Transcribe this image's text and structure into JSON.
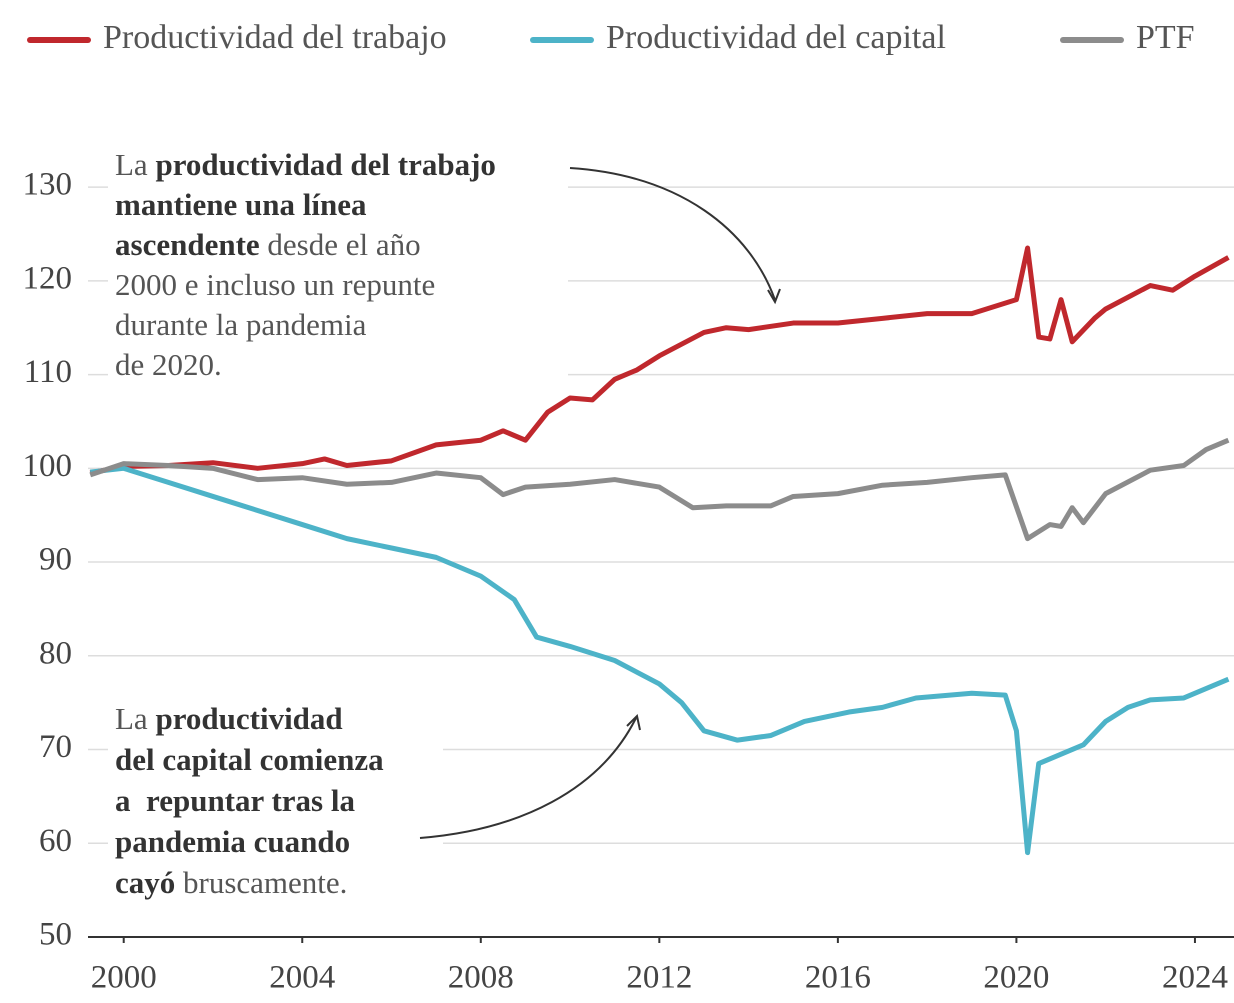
{
  "chart_data": {
    "type": "line",
    "legend": "top",
    "grid": true,
    "xlim": [
      1999.2,
      2024.83
    ],
    "xticks": [
      2000,
      2004,
      2008,
      2012,
      2016,
      2020,
      2024
    ],
    "ylim": [
      50,
      133
    ],
    "yticks": [
      50,
      60,
      70,
      80,
      90,
      100,
      110,
      120,
      130
    ],
    "series": [
      {
        "name": "Productividad del trabajo",
        "color": "#c0282d",
        "x": [
          1999.25,
          2000,
          2001,
          2002,
          2003,
          2004,
          2004.5,
          2005,
          2006,
          2007,
          2008,
          2008.5,
          2009,
          2009.5,
          2010,
          2010.5,
          2011,
          2011.5,
          2012,
          2013,
          2013.5,
          2014,
          2015,
          2016,
          2017,
          2018,
          2019,
          2020,
          2020.25,
          2020.5,
          2020.75,
          2021,
          2021.25,
          2021.75,
          2022,
          2023,
          2023.5,
          2024,
          2024.75
        ],
        "values": [
          99.5,
          100.2,
          100.3,
          100.6,
          100.0,
          100.5,
          101,
          100.3,
          100.8,
          102.5,
          103,
          104,
          103,
          106,
          107.5,
          107.3,
          109.5,
          110.5,
          112,
          114.5,
          115,
          114.8,
          115.5,
          115.5,
          116,
          116.5,
          116.5,
          118,
          123.5,
          114,
          113.8,
          118,
          113.5,
          116,
          117,
          119.5,
          119,
          120.5,
          122.5
        ]
      },
      {
        "name": "Productividad del capital",
        "color": "#4db3c8",
        "x": [
          1999.25,
          2000,
          2001,
          2002,
          2003,
          2004,
          2005,
          2006,
          2007,
          2008,
          2008.75,
          2009.25,
          2010,
          2011,
          2012,
          2012.5,
          2013,
          2013.75,
          2014.5,
          2015.25,
          2016.25,
          2017,
          2017.75,
          2019,
          2019.75,
          2020,
          2020.25,
          2020.5,
          2021,
          2021.5,
          2022,
          2022.5,
          2023,
          2023.75,
          2024.75
        ],
        "values": [
          99.6,
          100,
          98.5,
          97,
          95.5,
          94,
          92.5,
          91.5,
          90.5,
          88.5,
          86,
          82,
          81,
          79.5,
          77,
          75,
          72,
          71,
          71.5,
          73,
          74,
          74.5,
          75.5,
          76,
          75.8,
          72,
          59,
          68.5,
          69.5,
          70.5,
          73,
          74.5,
          75.3,
          75.5,
          77.5
        ]
      },
      {
        "name": "PTF",
        "color": "#8c8c8c",
        "x": [
          1999.25,
          2000,
          2001,
          2002,
          2003,
          2004,
          2005,
          2006,
          2007,
          2008,
          2008.5,
          2009,
          2010,
          2011,
          2012,
          2012.75,
          2013.5,
          2014.5,
          2015,
          2016,
          2017,
          2018,
          2019,
          2019.75,
          2020.25,
          2020.75,
          2021,
          2021.25,
          2021.5,
          2022,
          2023,
          2023.75,
          2024.25,
          2024.75
        ],
        "values": [
          99.3,
          100.5,
          100.3,
          100,
          98.8,
          99,
          98.3,
          98.5,
          99.5,
          99,
          97.2,
          98,
          98.3,
          98.8,
          98,
          95.8,
          96,
          96,
          97,
          97.3,
          98.2,
          98.5,
          99,
          99.3,
          92.5,
          94,
          93.8,
          95.8,
          94.2,
          97.3,
          99.8,
          100.3,
          102,
          103
        ]
      }
    ],
    "annotations": [
      {
        "lines": [
          [
            {
              "text": "La "
            },
            {
              "text": "productividad del trabajo",
              "bold": true
            }
          ],
          [
            {
              "text": "mantiene una línea",
              "bold": true
            }
          ],
          [
            {
              "text": "ascendente",
              "bold": true
            },
            {
              "text": " desde el año"
            }
          ],
          [
            {
              "text": "2000 e incluso un repunte"
            }
          ],
          [
            {
              "text": "durante la pandemia"
            }
          ],
          [
            {
              "text": "de 2020."
            }
          ]
        ]
      },
      {
        "lines": [
          [
            {
              "text": "La "
            },
            {
              "text": "productividad",
              "bold": true
            }
          ],
          [
            {
              "text": "del capital comienza",
              "bold": true
            }
          ],
          [
            {
              "text": "a  repuntar tras la",
              "bold": true
            }
          ],
          [
            {
              "text": "pandemia cuando",
              "bold": true
            }
          ],
          [
            {
              "text": "cayó",
              "bold": true
            },
            {
              "text": " bruscamente."
            }
          ]
        ]
      }
    ]
  }
}
